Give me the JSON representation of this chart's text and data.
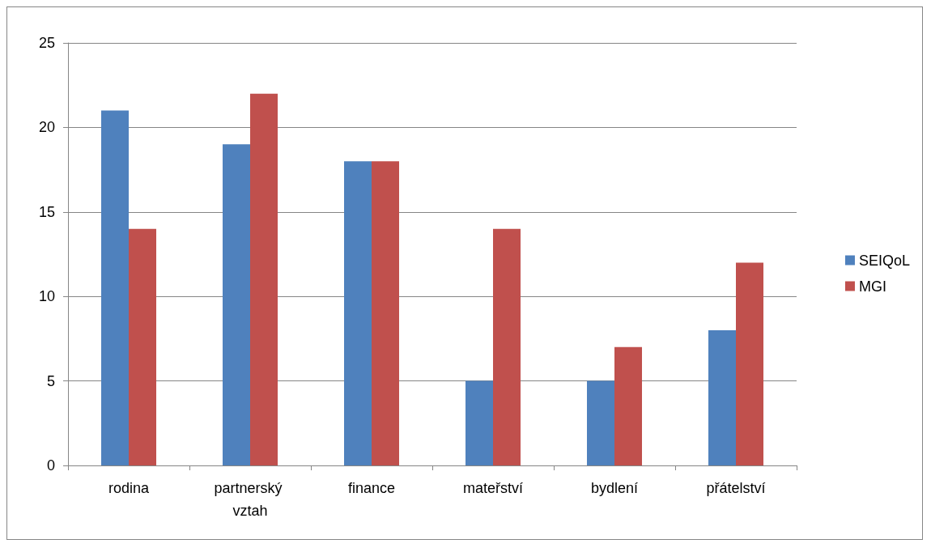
{
  "chart_data": {
    "type": "bar",
    "categories": [
      "rodina",
      "partnerský vztah",
      "finance",
      "mateřství",
      "bydlení",
      "přátelství"
    ],
    "series": [
      {
        "name": "SEIQoL",
        "color": "#4f81bd",
        "values": [
          21,
          19,
          18,
          5,
          5,
          8
        ]
      },
      {
        "name": "MGI",
        "color": "#c0504d",
        "values": [
          14,
          22,
          18,
          14,
          7,
          12
        ]
      }
    ],
    "ylim": [
      0,
      25
    ],
    "yticks": [
      0,
      5,
      10,
      15,
      20,
      25
    ],
    "grid": "y",
    "legend": "right"
  }
}
